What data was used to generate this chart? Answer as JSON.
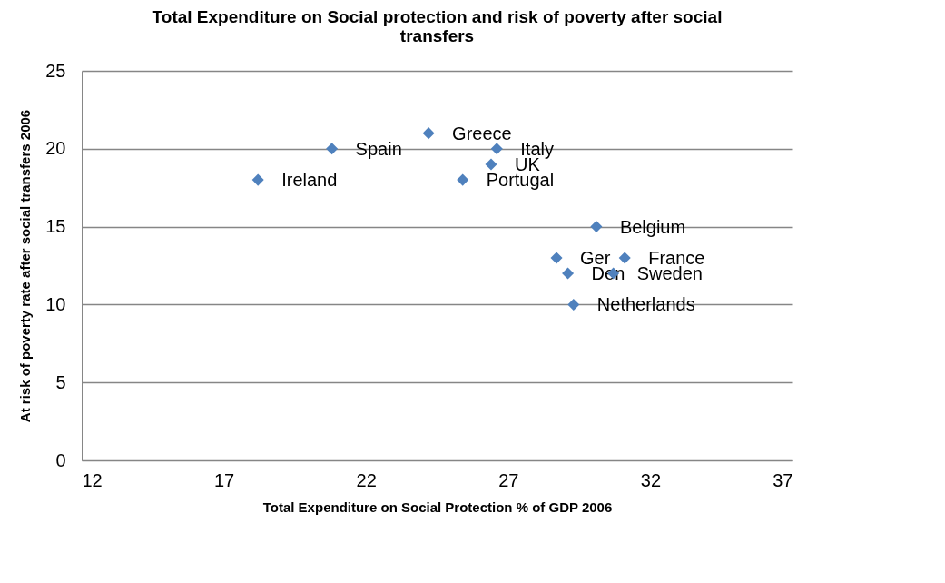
{
  "chart_data": {
    "type": "scatter",
    "title": "Total Expenditure on Social protection and risk of poverty after social transfers",
    "xlabel": "Total Expenditure on Social Protection % of GDP 2006",
    "ylabel": "At risk of poverty rate after social transfers 2006",
    "series": [
      {
        "color": "#4f81bd",
        "x": [
          18.2,
          20.8,
          24.2,
          26.6,
          26.4,
          25.4,
          30.1,
          28.7,
          31.1,
          29.1,
          30.7,
          29.3
        ],
        "values": [
          18,
          20,
          21,
          20,
          19,
          18,
          15,
          13,
          13,
          12,
          12,
          10
        ]
      }
    ],
    "annotations": [
      {
        "text": "Ireland",
        "x": 18.2,
        "y": 18
      },
      {
        "text": "Spain",
        "x": 20.8,
        "y": 20
      },
      {
        "text": "Greece",
        "x": 24.2,
        "y": 21
      },
      {
        "text": "Italy",
        "x": 26.6,
        "y": 20
      },
      {
        "text": "UK",
        "x": 26.4,
        "y": 19
      },
      {
        "text": "Portugal",
        "x": 25.4,
        "y": 18
      },
      {
        "text": "Belgium",
        "x": 30.1,
        "y": 15
      },
      {
        "text": "Ger",
        "x": 28.7,
        "y": 13
      },
      {
        "text": "France",
        "x": 31.1,
        "y": 13
      },
      {
        "text": "Den",
        "x": 29.1,
        "y": 12
      },
      {
        "text": "Sweden",
        "x": 30.7,
        "y": 12
      },
      {
        "text": "Netherlands",
        "x": 29.3,
        "y": 10
      }
    ],
    "xlim": [
      12,
      37
    ],
    "xticks": [
      12,
      17,
      22,
      27,
      32,
      37
    ],
    "ylim": [
      0,
      25
    ],
    "yticks": [
      0,
      5,
      10,
      15,
      20,
      25
    ],
    "grid": "y",
    "marker": "diamond"
  }
}
